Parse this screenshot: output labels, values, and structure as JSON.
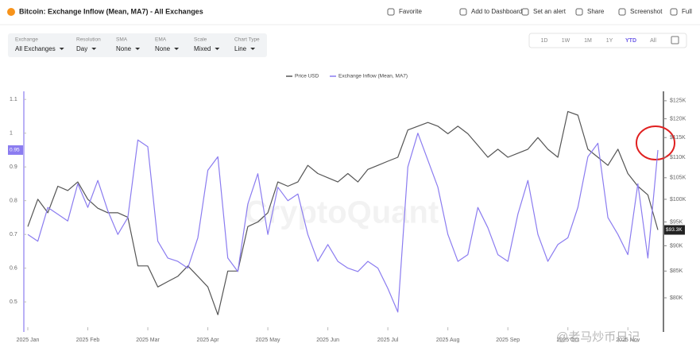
{
  "header": {
    "title": "Bitcoin: Exchange Inflow (Mean, MA7) - All Exchanges",
    "actions": [
      "Favorite",
      "Add to Dashboard",
      "Set an alert",
      "Share",
      "Screenshot",
      "Full"
    ]
  },
  "filters": [
    {
      "label": "Exchange",
      "value": "All Exchanges"
    },
    {
      "label": "Resolution",
      "value": "Day"
    },
    {
      "label": "SMA",
      "value": "None"
    },
    {
      "label": "EMA",
      "value": "None"
    },
    {
      "label": "Scale",
      "value": "Mixed"
    },
    {
      "label": "Chart Type",
      "value": "Line"
    }
  ],
  "ranges": [
    "1D",
    "1W",
    "1M",
    "1Y",
    "YTD",
    "All"
  ],
  "active_range": "YTD",
  "watermark_overlay": "@老马炒币日记",
  "chart_data": {
    "type": "line",
    "watermark": "CryptoQuant",
    "categories": [
      "2025 Jan",
      null,
      null,
      null,
      null,
      null,
      "2025 Feb",
      null,
      null,
      null,
      null,
      null,
      "2025 Mar",
      null,
      null,
      null,
      null,
      null,
      "2025 Apr",
      null,
      null,
      null,
      null,
      null,
      "2025 May",
      null,
      null,
      null,
      null,
      null,
      "2025 Jun",
      null,
      null,
      null,
      null,
      null,
      "2025 Jul",
      null,
      null,
      null,
      null,
      null,
      "2025 Aug",
      null,
      null,
      null,
      null,
      null,
      "2025 Sep",
      null,
      null,
      null,
      null,
      null,
      "2025 Oct",
      null,
      null,
      null,
      null,
      null,
      "2025 Nov",
      null,
      null,
      null
    ],
    "series": [
      {
        "name": "Price USD",
        "color": "#555555",
        "axis": "y2",
        "last_label": "$93.3K",
        "values": [
          94000,
          100000,
          97000,
          103000,
          102000,
          104000,
          100000,
          98000,
          97000,
          97000,
          96000,
          86000,
          86000,
          82000,
          83000,
          84000,
          86000,
          84000,
          82000,
          77000,
          85000,
          85000,
          94000,
          95000,
          97000,
          104000,
          103000,
          104000,
          108000,
          106000,
          105000,
          104000,
          106000,
          104000,
          107000,
          108000,
          109000,
          110000,
          117000,
          118000,
          119000,
          118000,
          116000,
          118000,
          116000,
          113000,
          110000,
          112000,
          110000,
          111000,
          112000,
          115000,
          112000,
          110000,
          122000,
          121000,
          112000,
          110000,
          108000,
          112000,
          106000,
          103000,
          101000,
          93300
        ]
      },
      {
        "name": "Exchange Inflow (Mean, MA7)",
        "color": "#8b7cf0",
        "axis": "y",
        "last_label": "0.95",
        "values": [
          0.7,
          0.68,
          0.78,
          0.76,
          0.74,
          0.85,
          0.78,
          0.86,
          0.77,
          0.7,
          0.75,
          0.98,
          0.96,
          0.68,
          0.63,
          0.62,
          0.6,
          0.69,
          0.89,
          0.93,
          0.63,
          0.59,
          0.79,
          0.88,
          0.7,
          0.84,
          0.8,
          0.82,
          0.7,
          0.62,
          0.67,
          0.62,
          0.6,
          0.59,
          0.62,
          0.6,
          0.54,
          0.47,
          0.9,
          1.0,
          0.92,
          0.84,
          0.7,
          0.62,
          0.64,
          0.78,
          0.72,
          0.64,
          0.62,
          0.76,
          0.86,
          0.7,
          0.62,
          0.67,
          0.69,
          0.78,
          0.93,
          0.97,
          0.75,
          0.7,
          0.64,
          0.85,
          0.63,
          0.95
        ]
      }
    ],
    "ylim": [
      0.425,
      1.124
    ],
    "yticks": [
      0.5,
      0.6,
      0.7,
      0.8,
      0.9,
      1,
      1.1
    ],
    "y2lim": [
      74850,
      127700
    ],
    "y2log": true,
    "y2ticks": [
      {
        "value": 80000,
        "label": "$80K"
      },
      {
        "value": 85000,
        "label": "$85K"
      },
      {
        "value": 90000,
        "label": "$90K"
      },
      {
        "value": 95000,
        "label": "$95K"
      },
      {
        "value": 100000,
        "label": "$100K"
      },
      {
        "value": 105000,
        "label": "$105K"
      },
      {
        "value": 110000,
        "label": "$110K"
      },
      {
        "value": 115000,
        "label": "$115K"
      },
      {
        "value": 120000,
        "label": "$120K"
      },
      {
        "value": 125000,
        "label": "$125K"
      }
    ],
    "grid": false
  }
}
